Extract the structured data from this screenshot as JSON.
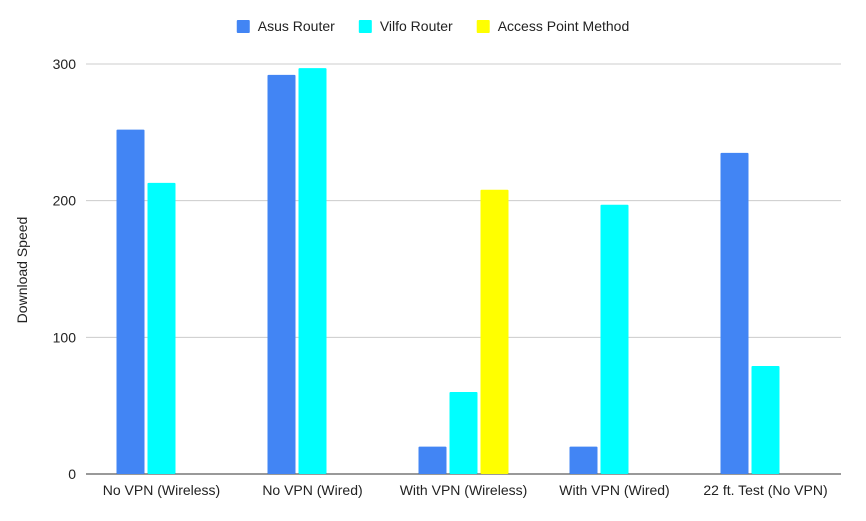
{
  "chart_data": {
    "type": "bar",
    "title": "",
    "xlabel": "",
    "ylabel": "Download Speed",
    "ylim": [
      0,
      300
    ],
    "yticks": [
      0,
      100,
      200,
      300
    ],
    "grid": true,
    "legend_position": "top",
    "categories": [
      "No VPN (Wireless)",
      "No VPN (Wired)",
      "With VPN (Wireless)",
      "With VPN (Wired)",
      "22 ft. Test (No VPN)"
    ],
    "series": [
      {
        "name": "Asus Router",
        "color": "#4285f4",
        "values": [
          252,
          292,
          20,
          20,
          235
        ]
      },
      {
        "name": "Vilfo Router",
        "color": "#00ffff",
        "values": [
          213,
          297,
          60,
          197,
          79
        ]
      },
      {
        "name": "Access Point Method",
        "color": "#ffff00",
        "values": [
          null,
          null,
          208,
          null,
          null
        ]
      }
    ]
  }
}
